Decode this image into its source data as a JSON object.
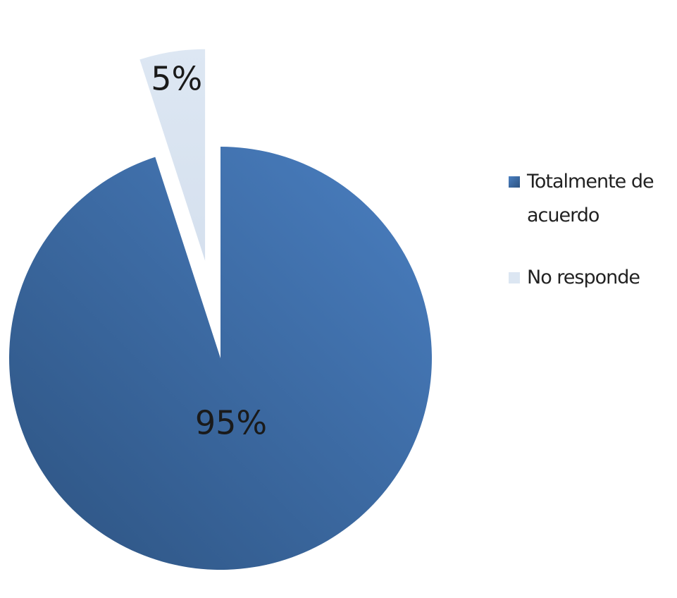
{
  "chart_data": {
    "type": "pie",
    "title": "",
    "slices": [
      {
        "name": "Totalmente de acuerdo",
        "value": 95,
        "label": "95%",
        "color": "#3a6aa6",
        "exploded": false
      },
      {
        "name": "No responde",
        "value": 5,
        "label": "5%",
        "color": "#dce6f2",
        "exploded": true
      }
    ],
    "start_angle_deg": 0,
    "direction": "clockwise",
    "legend": {
      "position": "right",
      "entries": [
        "Totalmente de acuerdo",
        "No responde"
      ]
    }
  }
}
